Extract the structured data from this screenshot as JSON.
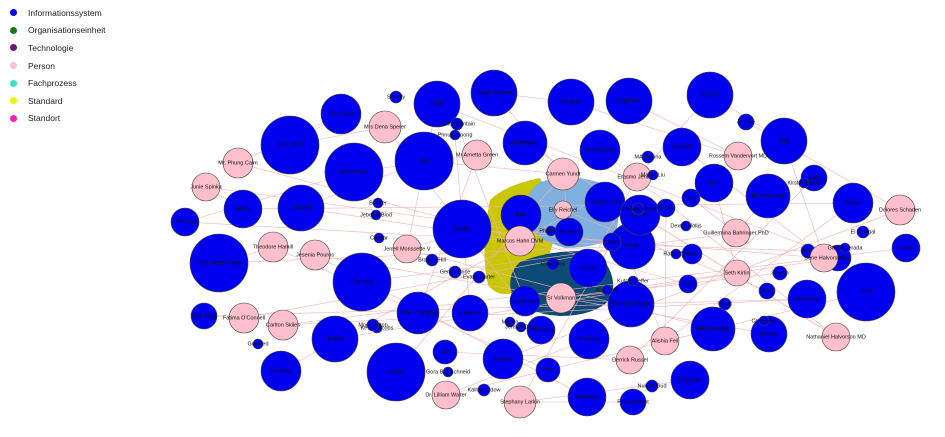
{
  "legend": [
    {
      "label": "Informationssystem",
      "color": "#0000ee"
    },
    {
      "label": "Organisationseinheit",
      "color": "#1a7a1a"
    },
    {
      "label": "Technologie",
      "color": "#6a1580"
    },
    {
      "label": "Person",
      "color": "#ffc0cb"
    },
    {
      "label": "Fachprozess",
      "color": "#3de0cf"
    },
    {
      "label": "Standard",
      "color": "#f0f000"
    },
    {
      "label": "Standort",
      "color": "#ff1fb8"
    }
  ],
  "graph": {
    "edge_color": "#f2b3b3",
    "system_color": "#0000ee",
    "person_color": "#ffc0cb",
    "hull_colors": [
      "#c9c800",
      "#7fb0e0",
      "#0c4a78"
    ],
    "nodes": [
      {
        "id": "s1",
        "label": "SAP CRM",
        "kind": "system"
      },
      {
        "id": "s2",
        "label": "Salesforce",
        "kind": "system"
      },
      {
        "id": "s3",
        "label": "Jira",
        "kind": "system"
      },
      {
        "id": "s4",
        "label": "DMS",
        "kind": "system"
      },
      {
        "id": "s5",
        "label": "HR Portal",
        "kind": "system"
      },
      {
        "id": "s6",
        "label": "Billing",
        "kind": "system"
      },
      {
        "id": "s7",
        "label": "Data Warehouse",
        "kind": "system"
      },
      {
        "id": "s8",
        "label": "Intranet",
        "kind": "system"
      },
      {
        "id": "s9",
        "label": "Web Shop",
        "kind": "system"
      },
      {
        "id": "s10",
        "label": "ERP Core",
        "kind": "system"
      },
      {
        "id": "s11",
        "label": "Ticket System",
        "kind": "system"
      },
      {
        "id": "s12",
        "label": "Finance",
        "kind": "system"
      },
      {
        "id": "s13",
        "label": "Logistics",
        "kind": "system"
      },
      {
        "id": "s14",
        "label": "Payroll",
        "kind": "system"
      },
      {
        "id": "s15",
        "label": "Mail",
        "kind": "system"
      },
      {
        "id": "s16",
        "label": "Archive",
        "kind": "system"
      },
      {
        "id": "s17",
        "label": "CMS",
        "kind": "system"
      },
      {
        "id": "s18",
        "label": "BI Reporting",
        "kind": "system"
      },
      {
        "id": "s19",
        "label": "Wiki",
        "kind": "system"
      },
      {
        "id": "s20",
        "label": "Portal",
        "kind": "system"
      },
      {
        "id": "s21",
        "label": "Analytics",
        "kind": "system"
      },
      {
        "id": "s22",
        "label": "PIM",
        "kind": "system"
      },
      {
        "id": "s23",
        "label": "Identity",
        "kind": "system"
      },
      {
        "id": "s24",
        "label": "Monitoring",
        "kind": "system"
      },
      {
        "id": "s25",
        "label": "Backup",
        "kind": "system"
      },
      {
        "id": "s26",
        "label": "API Gateway",
        "kind": "system"
      },
      {
        "id": "s27",
        "label": "Scheduler",
        "kind": "system"
      },
      {
        "id": "s28",
        "label": "Procurement",
        "kind": "system"
      },
      {
        "id": "s29",
        "label": "Inventory",
        "kind": "system"
      },
      {
        "id": "s30",
        "label": "Contract Mgmt",
        "kind": "system"
      },
      {
        "id": "s31",
        "label": "Fleet",
        "kind": "system"
      },
      {
        "id": "s32",
        "label": "Service Desk",
        "kind": "system"
      },
      {
        "id": "s33",
        "label": "Asset Mgmt",
        "kind": "system"
      },
      {
        "id": "s34",
        "label": "Marketing",
        "kind": "system"
      },
      {
        "id": "s35",
        "label": "Quality",
        "kind": "system"
      },
      {
        "id": "s36",
        "label": "Planning",
        "kind": "system"
      },
      {
        "id": "s37",
        "label": "Travel",
        "kind": "system"
      },
      {
        "id": "s38",
        "label": "Learning",
        "kind": "system"
      },
      {
        "id": "s39",
        "label": "Facility",
        "kind": "system"
      },
      {
        "id": "s40",
        "label": "Time Tracking",
        "kind": "system"
      },
      {
        "id": "s41",
        "label": "E-Invoice",
        "kind": "system"
      },
      {
        "id": "s42",
        "label": "Compliance",
        "kind": "system"
      },
      {
        "id": "s43",
        "label": "Recruiting",
        "kind": "system"
      },
      {
        "id": "s44",
        "label": "Treasury",
        "kind": "system"
      },
      {
        "id": "s45",
        "label": "Tax",
        "kind": "system"
      },
      {
        "id": "s46",
        "label": "Print",
        "kind": "system"
      },
      {
        "id": "s47",
        "label": "Telephony",
        "kind": "system"
      },
      {
        "id": "s48",
        "label": "Chat",
        "kind": "system"
      },
      {
        "id": "s49",
        "label": "Sales",
        "kind": "system"
      },
      {
        "id": "s50",
        "label": "Audit",
        "kind": "system"
      },
      {
        "id": "s51",
        "label": "Search",
        "kind": "system"
      },
      {
        "id": "s52",
        "label": "Docs",
        "kind": "system"
      },
      {
        "id": "s53",
        "label": "Risk",
        "kind": "system"
      },
      {
        "id": "s54",
        "label": "Projects",
        "kind": "system"
      },
      {
        "id": "s55",
        "label": "Forms",
        "kind": "system"
      },
      {
        "id": "s56",
        "label": "Claims",
        "kind": "system"
      },
      {
        "id": "s57",
        "label": "Portal B",
        "kind": "system"
      },
      {
        "id": "s58",
        "label": "Sync",
        "kind": "system"
      },
      {
        "id": "s59",
        "label": "Export",
        "kind": "system"
      },
      {
        "id": "s60",
        "label": "Import",
        "kind": "system"
      },
      {
        "id": "t1",
        "label": "Shopify",
        "kind": "small"
      },
      {
        "id": "t2",
        "label": "Goodmountain",
        "kind": "small"
      },
      {
        "id": "t3",
        "label": "Phnum Spong",
        "kind": "small"
      },
      {
        "id": "t4",
        "label": "Mrs Dena Sperer",
        "kind": "person"
      },
      {
        "id": "t5",
        "label": "Mr. Phung Calm",
        "kind": "person"
      },
      {
        "id": "t6",
        "label": "Junie Spinka",
        "kind": "person"
      },
      {
        "id": "t7",
        "label": "Theodore Hamill",
        "kind": "person"
      },
      {
        "id": "t8",
        "label": "Jesenia Pouros",
        "kind": "person"
      },
      {
        "id": "t9",
        "label": "Jerrell Morissette V",
        "kind": "person"
      },
      {
        "id": "t10",
        "label": "Marcos Hahn DVM",
        "kind": "person"
      },
      {
        "id": "t11",
        "label": "Carmen Yundt",
        "kind": "person"
      },
      {
        "id": "t12",
        "label": "Mr Arnetta Green",
        "kind": "person"
      },
      {
        "id": "t13",
        "label": "Fatima O'Connell",
        "kind": "person"
      },
      {
        "id": "t14",
        "label": "Carlton Skiles",
        "kind": "person"
      },
      {
        "id": "t15",
        "label": "Dr. Lilliam Walter",
        "kind": "person"
      },
      {
        "id": "t16",
        "label": "Stephany Larkin",
        "kind": "person"
      },
      {
        "id": "t17",
        "label": "Alishia Feil",
        "kind": "person"
      },
      {
        "id": "t18",
        "label": "Derrick Russel",
        "kind": "person"
      },
      {
        "id": "t19",
        "label": "Seth Kirlin",
        "kind": "person"
      },
      {
        "id": "t20",
        "label": "Guillermina Bahringer PhD",
        "kind": "person"
      },
      {
        "id": "t21",
        "label": "Bene Halvorson",
        "kind": "person"
      },
      {
        "id": "t22",
        "label": "Dolores Schaden",
        "kind": "person"
      },
      {
        "id": "t23",
        "label": "Rossem Vandervort MD",
        "kind": "person"
      },
      {
        "id": "t24",
        "label": "Erasmo Jenkins",
        "kind": "person"
      },
      {
        "id": "t25",
        "label": "Nathaniel Halvorson MD",
        "kind": "person"
      },
      {
        "id": "t26",
        "label": "Sr Volkman",
        "kind": "person"
      },
      {
        "id": "t27",
        "label": "Elly Reichel",
        "kind": "person"
      },
      {
        "id": "t28",
        "label": "Gottfried",
        "kind": "small"
      },
      {
        "id": "t29",
        "label": "Nullum Gud",
        "kind": "small"
      },
      {
        "id": "t30",
        "label": "Gora Breitschneid",
        "kind": "small"
      },
      {
        "id": "t31",
        "label": "Kalma Drdow",
        "kind": "small"
      },
      {
        "id": "t32",
        "label": "Mogen",
        "kind": "small"
      },
      {
        "id": "t33",
        "label": "Kevin Jacobs",
        "kind": "small"
      },
      {
        "id": "t34",
        "label": "Mont Salton",
        "kind": "small"
      },
      {
        "id": "t35",
        "label": "Cervantes",
        "kind": "small"
      },
      {
        "id": "t36",
        "label": "Flaatt",
        "kind": "small"
      },
      {
        "id": "t37",
        "label": "El Pelegal",
        "kind": "small"
      },
      {
        "id": "t38",
        "label": "Garsin Lerada",
        "kind": "small"
      },
      {
        "id": "t39",
        "label": "Dexter Hollis",
        "kind": "small"
      },
      {
        "id": "t40",
        "label": "Kirsten Board",
        "kind": "small"
      },
      {
        "id": "t41",
        "label": "MA Patrina",
        "kind": "small"
      },
      {
        "id": "t42",
        "label": "Goldner Bates",
        "kind": "small"
      },
      {
        "id": "t43",
        "label": "Mayer Liu",
        "kind": "small"
      },
      {
        "id": "t44",
        "label": "Ratke Zhe",
        "kind": "small"
      },
      {
        "id": "t45",
        "label": "Bernier",
        "kind": "small"
      },
      {
        "id": "t46",
        "label": "Jebelad Blod",
        "kind": "small"
      },
      {
        "id": "t47",
        "label": "Caspar",
        "kind": "small"
      },
      {
        "id": "t48",
        "label": "Bradley Hill",
        "kind": "small"
      },
      {
        "id": "t49",
        "label": "Gerold Price",
        "kind": "small"
      },
      {
        "id": "t50",
        "label": "Evans Carter",
        "kind": "small"
      },
      {
        "id": "t51",
        "label": "Philip Hol",
        "kind": "small"
      },
      {
        "id": "t52",
        "label": "Colin Mos",
        "kind": "small"
      },
      {
        "id": "t53",
        "label": "Jensen Drew",
        "kind": "small"
      },
      {
        "id": "t54",
        "label": "Abe Roth",
        "kind": "small"
      },
      {
        "id": "t55",
        "label": "Kutch Pfeffer",
        "kind": "small"
      }
    ],
    "edges": [
      [
        "s1",
        "t4"
      ],
      [
        "s1",
        "s5"
      ],
      [
        "s2",
        "t12"
      ],
      [
        "s2",
        "s10"
      ],
      [
        "s3",
        "t11"
      ],
      [
        "s3",
        "s8"
      ],
      [
        "s4",
        "t9"
      ],
      [
        "s4",
        "s21"
      ],
      [
        "s5",
        "t5"
      ],
      [
        "s6",
        "t6"
      ],
      [
        "s6",
        "s20"
      ],
      [
        "s7",
        "t7"
      ],
      [
        "s7",
        "s31"
      ],
      [
        "s8",
        "t10"
      ],
      [
        "s9",
        "t13"
      ],
      [
        "s9",
        "s24"
      ],
      [
        "s10",
        "t10"
      ],
      [
        "s11",
        "t11"
      ],
      [
        "s11",
        "s12"
      ],
      [
        "s12",
        "t23"
      ],
      [
        "s13",
        "t23"
      ],
      [
        "s14",
        "t24"
      ],
      [
        "s14",
        "s15"
      ],
      [
        "s15",
        "t21"
      ],
      [
        "s16",
        "t22"
      ],
      [
        "s17",
        "t19"
      ],
      [
        "s18",
        "t20"
      ],
      [
        "s19",
        "t18"
      ],
      [
        "s20",
        "t17"
      ],
      [
        "s21",
        "t26"
      ],
      [
        "s22",
        "t15"
      ],
      [
        "s23",
        "t14"
      ],
      [
        "s24",
        "t14"
      ],
      [
        "s25",
        "t8"
      ],
      [
        "s26",
        "t9"
      ],
      [
        "s27",
        "t16"
      ],
      [
        "s28",
        "t16"
      ],
      [
        "s29",
        "t15"
      ],
      [
        "s30",
        "t26"
      ],
      [
        "s31",
        "t13"
      ],
      [
        "s32",
        "t17"
      ],
      [
        "s33",
        "t25"
      ],
      [
        "s34",
        "t25"
      ],
      [
        "s35",
        "t21"
      ],
      [
        "s36",
        "t20"
      ],
      [
        "s37",
        "t19"
      ],
      [
        "s38",
        "t24"
      ],
      [
        "s39",
        "t11"
      ],
      [
        "s40",
        "t12"
      ],
      [
        "s41",
        "t3"
      ],
      [
        "s42",
        "t2"
      ],
      [
        "s43",
        "t4"
      ],
      [
        "s44",
        "t22"
      ],
      [
        "s45",
        "t18"
      ],
      [
        "s46",
        "t7"
      ],
      [
        "s47",
        "t8"
      ],
      [
        "s48",
        "t6"
      ],
      [
        "s49",
        "t5"
      ],
      [
        "s50",
        "t27"
      ],
      [
        "s51",
        "t26"
      ],
      [
        "s52",
        "t10"
      ],
      [
        "s53",
        "t9"
      ],
      [
        "s54",
        "t11"
      ],
      [
        "s55",
        "t24"
      ],
      [
        "s56",
        "t25"
      ],
      [
        "s57",
        "t21"
      ],
      [
        "s58",
        "t20"
      ],
      [
        "s59",
        "t17"
      ],
      [
        "s60",
        "t16"
      ]
    ]
  }
}
